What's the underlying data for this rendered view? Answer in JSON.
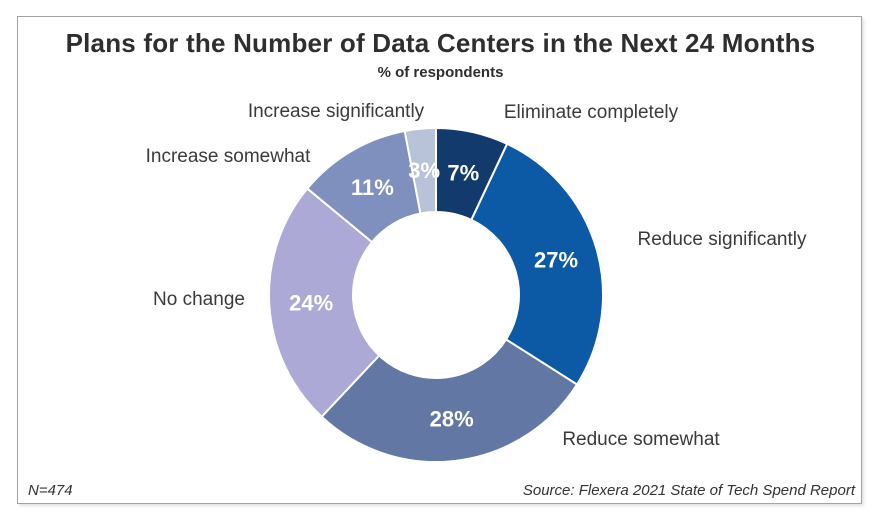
{
  "chart_data": {
    "type": "pie",
    "variant": "donut",
    "title": "Plans for the Number of Data Centers in the Next 24 Months",
    "subtitle": "% of respondents",
    "start_angle_deg": 0,
    "direction": "clockwise",
    "inner_radius_ratio": 0.5,
    "legend_position": "outside-labels",
    "segments": [
      {
        "label": "Eliminate completely",
        "value": 7,
        "display": "7%",
        "color": "#133A6C"
      },
      {
        "label": "Reduce significantly",
        "value": 27,
        "display": "27%",
        "color": "#0C5AA6"
      },
      {
        "label": "Reduce somewhat",
        "value": 28,
        "display": "28%",
        "color": "#6377A5"
      },
      {
        "label": "No change",
        "value": 24,
        "display": "24%",
        "color": "#ACA9D7"
      },
      {
        "label": "Increase somewhat",
        "value": 11,
        "display": "11%",
        "color": "#8090BE"
      },
      {
        "label": "Increase significantly",
        "value": 3,
        "display": "3%",
        "color": "#B8C2D8"
      }
    ],
    "value_label_color": "#FFFFFF",
    "category_label_color": "#3A3A3A",
    "slice_border_color": "#FFFFFF"
  },
  "footer": {
    "sample_size": "N=474",
    "source": "Source: Flexera 2021 State of Tech Spend Report"
  }
}
